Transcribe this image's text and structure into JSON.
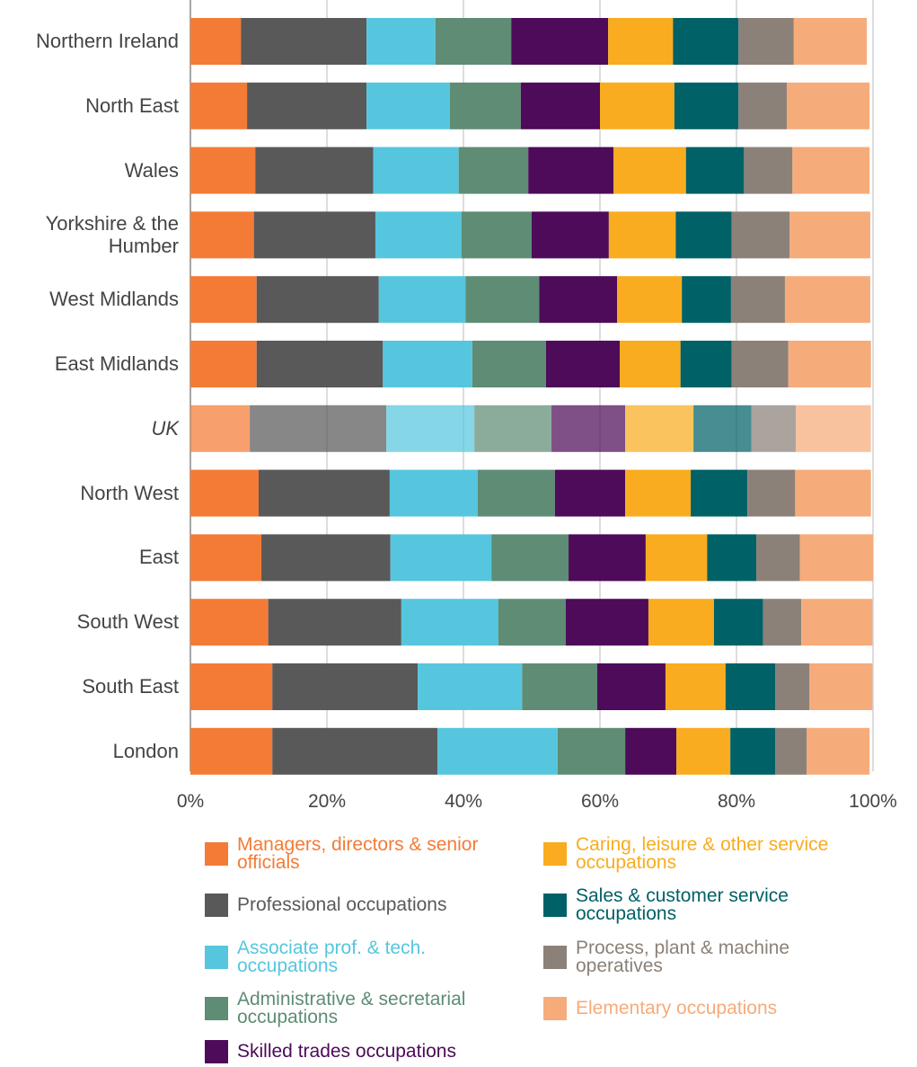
{
  "chart_data": {
    "type": "stacked-bar-horizontal",
    "categories": [
      "Northern Ireland",
      "North East",
      "Wales",
      "Yorkshire & the Humber",
      "West Midlands",
      "East Midlands",
      "UK",
      "North West",
      "East",
      "South West",
      "South East",
      "London"
    ],
    "highlight_index": 6,
    "series": [
      {
        "name": "Managers, directors & senior officials",
        "color": "#f47b35",
        "values": [
          7.4,
          8.3,
          9.5,
          9.3,
          9.7,
          9.7,
          8.7,
          10.0,
          10.4,
          11.4,
          12.0,
          12.0
        ]
      },
      {
        "name": "Professional occupations",
        "color": "#595959",
        "values": [
          18.4,
          17.5,
          17.3,
          17.8,
          17.9,
          18.5,
          20.0,
          19.2,
          18.9,
          19.5,
          21.3,
          24.2
        ]
      },
      {
        "name": "Associate prof. & tech. occupations",
        "color": "#56c6de",
        "values": [
          10.1,
          12.2,
          12.5,
          12.6,
          12.7,
          13.1,
          12.9,
          12.9,
          14.8,
          14.2,
          15.3,
          17.6
        ]
      },
      {
        "name": "Administrative & secretarial occupations",
        "color": "#5e8c74",
        "values": [
          11.1,
          10.4,
          10.2,
          10.3,
          10.8,
          10.8,
          11.3,
          11.3,
          11.3,
          9.9,
          11.0,
          9.9
        ]
      },
      {
        "name": "Skilled trades occupations",
        "color": "#4d0b5a",
        "values": [
          14.2,
          11.6,
          12.5,
          11.3,
          11.4,
          10.8,
          10.8,
          10.3,
          11.3,
          12.1,
          10.0,
          7.5
        ]
      },
      {
        "name": "Caring, leisure & other service occupations",
        "color": "#f9ac1f",
        "values": [
          9.5,
          10.9,
          10.6,
          9.8,
          9.5,
          8.9,
          10.0,
          9.6,
          9.0,
          9.6,
          8.8,
          7.9
        ]
      },
      {
        "name": "Sales & customer service occupations",
        "color": "#006166",
        "values": [
          9.6,
          9.4,
          8.5,
          8.2,
          7.2,
          7.5,
          8.5,
          8.3,
          7.2,
          7.2,
          7.3,
          6.6
        ]
      },
      {
        "name": "Process, plant & machine operatives",
        "color": "#8b8178",
        "values": [
          8.1,
          7.1,
          7.1,
          8.5,
          7.9,
          8.3,
          6.5,
          7.0,
          6.4,
          5.6,
          5.0,
          4.6
        ]
      },
      {
        "name": "Elementary occupations",
        "color": "#f6ab7a",
        "values": [
          10.7,
          12.1,
          11.3,
          11.8,
          12.5,
          12.1,
          11.0,
          11.1,
          10.7,
          10.4,
          9.2,
          9.2
        ]
      }
    ],
    "xlim": [
      0,
      100
    ],
    "xticks": [
      {
        "value": 0,
        "label": "0%"
      },
      {
        "value": 20,
        "label": "20%"
      },
      {
        "value": 40,
        "label": "40%"
      },
      {
        "value": 60,
        "label": "60%"
      },
      {
        "value": 80,
        "label": "80%"
      },
      {
        "value": 100,
        "label": "100%"
      }
    ],
    "grid": true
  }
}
